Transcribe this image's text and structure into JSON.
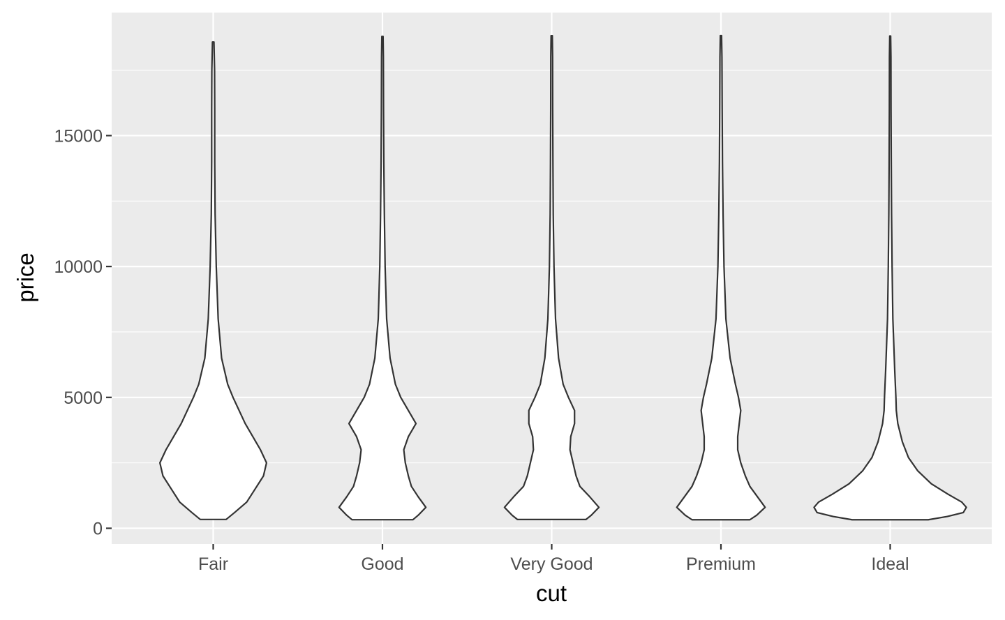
{
  "chart_data": {
    "type": "violin",
    "title": "",
    "xlabel": "cut",
    "ylabel": "price",
    "categories": [
      "Fair",
      "Good",
      "Very Good",
      "Premium",
      "Ideal"
    ],
    "y_ticks": [
      0,
      5000,
      10000,
      15000
    ],
    "y_tick_labels": [
      "0",
      "5000",
      "10000",
      "15000"
    ],
    "ylim": [
      -600,
      19700
    ],
    "grid": true,
    "colors": {
      "panel": "#ebebeb",
      "grid": "#ffffff",
      "outline": "#333333",
      "fill": "#ffffff"
    },
    "violins": [
      {
        "category": "Fair",
        "min": 337,
        "max": 18574,
        "profile": [
          [
            337,
            0.17
          ],
          [
            600,
            0.28
          ],
          [
            1000,
            0.44
          ],
          [
            1500,
            0.55
          ],
          [
            2000,
            0.66
          ],
          [
            2500,
            0.7
          ],
          [
            3000,
            0.62
          ],
          [
            3500,
            0.52
          ],
          [
            4000,
            0.42
          ],
          [
            4500,
            0.34
          ],
          [
            5000,
            0.26
          ],
          [
            5500,
            0.19
          ],
          [
            6500,
            0.11
          ],
          [
            8000,
            0.065
          ],
          [
            10000,
            0.04
          ],
          [
            12000,
            0.025
          ],
          [
            14000,
            0.02
          ],
          [
            16000,
            0.02
          ],
          [
            17500,
            0.018
          ],
          [
            18574,
            0.01
          ]
        ]
      },
      {
        "category": "Good",
        "min": 327,
        "max": 18788,
        "profile": [
          [
            327,
            0.4
          ],
          [
            500,
            0.47
          ],
          [
            800,
            0.57
          ],
          [
            1200,
            0.47
          ],
          [
            1600,
            0.38
          ],
          [
            2000,
            0.34
          ],
          [
            2500,
            0.3
          ],
          [
            3000,
            0.28
          ],
          [
            3500,
            0.34
          ],
          [
            4000,
            0.44
          ],
          [
            4500,
            0.34
          ],
          [
            5000,
            0.24
          ],
          [
            5500,
            0.17
          ],
          [
            6500,
            0.1
          ],
          [
            8000,
            0.055
          ],
          [
            10000,
            0.035
          ],
          [
            12000,
            0.025
          ],
          [
            14000,
            0.018
          ],
          [
            16000,
            0.014
          ],
          [
            18000,
            0.012
          ],
          [
            18788,
            0.008
          ]
        ]
      },
      {
        "category": "Very Good",
        "min": 336,
        "max": 18818,
        "profile": [
          [
            336,
            0.45
          ],
          [
            500,
            0.52
          ],
          [
            800,
            0.62
          ],
          [
            1200,
            0.5
          ],
          [
            1600,
            0.37
          ],
          [
            2000,
            0.32
          ],
          [
            2500,
            0.28
          ],
          [
            3000,
            0.24
          ],
          [
            3500,
            0.25
          ],
          [
            4000,
            0.3
          ],
          [
            4500,
            0.3
          ],
          [
            5000,
            0.22
          ],
          [
            5500,
            0.15
          ],
          [
            6500,
            0.09
          ],
          [
            8000,
            0.05
          ],
          [
            10000,
            0.03
          ],
          [
            12000,
            0.02
          ],
          [
            14000,
            0.016
          ],
          [
            16000,
            0.013
          ],
          [
            18000,
            0.012
          ],
          [
            18818,
            0.008
          ]
        ]
      },
      {
        "category": "Premium",
        "min": 326,
        "max": 18823,
        "profile": [
          [
            326,
            0.38
          ],
          [
            500,
            0.47
          ],
          [
            800,
            0.58
          ],
          [
            1200,
            0.48
          ],
          [
            1600,
            0.38
          ],
          [
            2000,
            0.32
          ],
          [
            2500,
            0.26
          ],
          [
            3000,
            0.22
          ],
          [
            3500,
            0.22
          ],
          [
            4000,
            0.24
          ],
          [
            4500,
            0.26
          ],
          [
            5000,
            0.23
          ],
          [
            5500,
            0.19
          ],
          [
            6500,
            0.12
          ],
          [
            8000,
            0.065
          ],
          [
            10000,
            0.04
          ],
          [
            12000,
            0.028
          ],
          [
            14000,
            0.02
          ],
          [
            16000,
            0.016
          ],
          [
            18000,
            0.013
          ],
          [
            18823,
            0.008
          ]
        ]
      },
      {
        "category": "Ideal",
        "min": 326,
        "max": 18806,
        "profile": [
          [
            326,
            0.5
          ],
          [
            450,
            0.75
          ],
          [
            600,
            0.96
          ],
          [
            800,
            1.0
          ],
          [
            1000,
            0.94
          ],
          [
            1300,
            0.76
          ],
          [
            1700,
            0.54
          ],
          [
            2200,
            0.36
          ],
          [
            2700,
            0.24
          ],
          [
            3300,
            0.16
          ],
          [
            4000,
            0.1
          ],
          [
            4500,
            0.08
          ],
          [
            5000,
            0.075
          ],
          [
            6000,
            0.06
          ],
          [
            8000,
            0.035
          ],
          [
            10000,
            0.025
          ],
          [
            12000,
            0.018
          ],
          [
            14000,
            0.014
          ],
          [
            16000,
            0.011
          ],
          [
            18000,
            0.01
          ],
          [
            18806,
            0.006
          ]
        ]
      }
    ]
  }
}
